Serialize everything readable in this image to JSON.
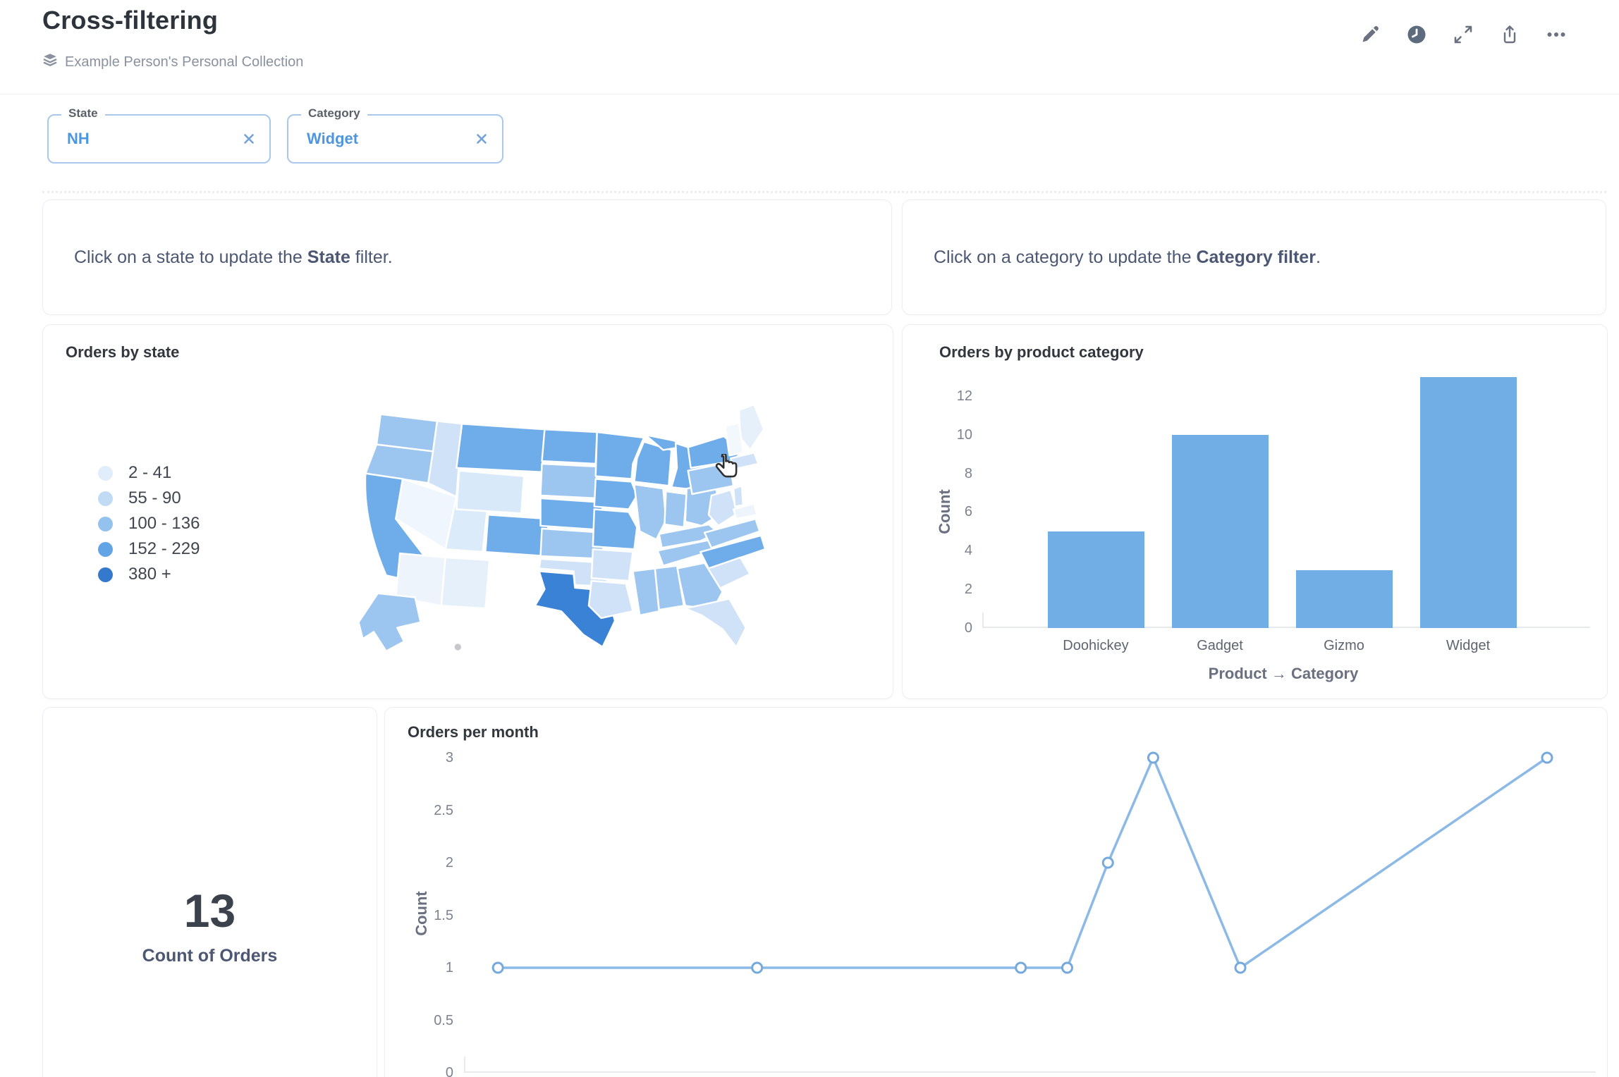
{
  "header": {
    "title": "Cross-filtering",
    "collection": "Example Person's Personal Collection"
  },
  "filters": [
    {
      "label": "State",
      "value": "NH"
    },
    {
      "label": "Category",
      "value": "Widget"
    }
  ],
  "text_cards": [
    {
      "prefix": "Click on a state to update the ",
      "bold": "State",
      "suffix": " filter."
    },
    {
      "prefix": "Click on a category to update the ",
      "bold": "Category filter",
      "suffix": "."
    }
  ],
  "chart_data": [
    {
      "type": "choropleth",
      "title": "Orders by state",
      "legend_bins": [
        {
          "label": "2 - 41",
          "color": "#e1edfa"
        },
        {
          "label": "55 - 90",
          "color": "#c2dbf5"
        },
        {
          "label": "100 - 136",
          "color": "#93c2ef"
        },
        {
          "label": "152 - 229",
          "color": "#62a4e6"
        },
        {
          "label": "380 +",
          "color": "#3579cd"
        }
      ]
    },
    {
      "type": "bar",
      "title": "Orders by product category",
      "categories": [
        "Doohickey",
        "Gadget",
        "Gizmo",
        "Widget"
      ],
      "values": [
        5,
        10,
        3,
        13
      ],
      "xlabel": "Product → Category",
      "ylabel": "Count",
      "yticks": [
        0,
        2,
        4,
        6,
        8,
        10,
        12
      ],
      "ylim": [
        0,
        13.5
      ],
      "bar_color": "#72aee6",
      "grid": false,
      "legend": "none"
    },
    {
      "type": "scalar",
      "value": "13",
      "label": "Count of Orders"
    },
    {
      "type": "line",
      "title": "Orders per month",
      "ylabel": "Count",
      "yticks": [
        3,
        2.5,
        2,
        1.5,
        1,
        0.5,
        0
      ],
      "ylim": [
        0,
        3.2
      ],
      "points": [
        {
          "x_frac": 0.03,
          "y": 1
        },
        {
          "x_frac": 0.259,
          "y": 1
        },
        {
          "x_frac": 0.492,
          "y": 1
        },
        {
          "x_frac": 0.533,
          "y": 1
        },
        {
          "x_frac": 0.569,
          "y": 2
        },
        {
          "x_frac": 0.609,
          "y": 3
        },
        {
          "x_frac": 0.686,
          "y": 1
        },
        {
          "x_frac": 0.957,
          "y": 3
        }
      ],
      "line_color": "#8cb9e6",
      "marker_stroke": "#74a9de",
      "grid": false,
      "legend": "none"
    }
  ]
}
